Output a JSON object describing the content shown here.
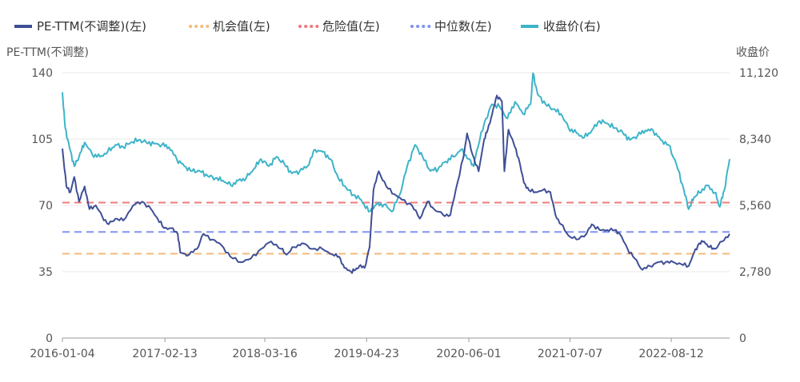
{
  "chart_data": {
    "type": "line",
    "legend": [
      {
        "key": "pe",
        "label": "PE-TTM(不调整)(左)",
        "color": "#3F4F96",
        "style": "solid"
      },
      {
        "key": "opp",
        "label": "机会值(左)",
        "color": "#F6B97A",
        "style": "dotted"
      },
      {
        "key": "danger",
        "label": "危险值(左)",
        "color": "#F07A7A",
        "style": "dotted"
      },
      {
        "key": "median",
        "label": "中位数(左)",
        "color": "#7F93F2",
        "style": "dotted"
      },
      {
        "key": "close",
        "label": "收盘价(右)",
        "color": "#3DB4C8",
        "style": "solid"
      }
    ],
    "y_left": {
      "title": "PE-TTM(不调整)",
      "ticks": [
        0,
        35,
        70,
        105,
        140
      ],
      "tick_labels": [
        "0",
        "35",
        "70",
        "105",
        "140"
      ],
      "range": [
        0,
        140
      ]
    },
    "y_right": {
      "title": "收盘价",
      "ticks": [
        0,
        2780,
        5560,
        8340,
        11120
      ],
      "tick_labels": [
        "0",
        "2,780",
        "5,560",
        "8,340",
        "11,120"
      ],
      "range": [
        0,
        11120
      ]
    },
    "x": {
      "tick_labels": [
        "2016-01-04",
        "2017-02-13",
        "2018-03-16",
        "2019-04-23",
        "2020-06-01",
        "2021-07-07",
        "2022-08-12"
      ],
      "start": "2016-01-04",
      "end": "2023-03-31"
    },
    "reference_lines": {
      "opportunity": 44.5,
      "danger": 71.5,
      "median": 56
    },
    "pe_series": [
      [
        "2016-01-04",
        100
      ],
      [
        "2016-01-20",
        80
      ],
      [
        "2016-02-05",
        77
      ],
      [
        "2016-02-20",
        85
      ],
      [
        "2016-03-10",
        72
      ],
      [
        "2016-04-01",
        80
      ],
      [
        "2016-04-20",
        68
      ],
      [
        "2016-05-15",
        70
      ],
      [
        "2016-06-10",
        64
      ],
      [
        "2016-07-05",
        60
      ],
      [
        "2016-08-01",
        63
      ],
      [
        "2016-09-01",
        62
      ],
      [
        "2016-10-10",
        70
      ],
      [
        "2016-11-15",
        72
      ],
      [
        "2016-12-20",
        68
      ],
      [
        "2017-01-15",
        63
      ],
      [
        "2017-02-10",
        58
      ],
      [
        "2017-03-10",
        58
      ],
      [
        "2017-04-05",
        55
      ],
      [
        "2017-04-15",
        45
      ],
      [
        "2017-05-20",
        44
      ],
      [
        "2017-06-20",
        47
      ],
      [
        "2017-07-15",
        55
      ],
      [
        "2017-08-20",
        52
      ],
      [
        "2017-09-25",
        49
      ],
      [
        "2017-10-30",
        43
      ],
      [
        "2017-12-10",
        40
      ],
      [
        "2018-01-20",
        42
      ],
      [
        "2018-03-01",
        47
      ],
      [
        "2018-04-10",
        51
      ],
      [
        "2018-05-20",
        47
      ],
      [
        "2018-06-10",
        44
      ],
      [
        "2018-07-10",
        48
      ],
      [
        "2018-08-10",
        50
      ],
      [
        "2018-09-20",
        47
      ],
      [
        "2018-10-30",
        47
      ],
      [
        "2018-12-10",
        44
      ],
      [
        "2019-01-04",
        43
      ],
      [
        "2019-01-25",
        37
      ],
      [
        "2019-02-20",
        35
      ],
      [
        "2019-03-10",
        36
      ],
      [
        "2019-03-25",
        38
      ],
      [
        "2019-04-15",
        37
      ],
      [
        "2019-05-05",
        48
      ],
      [
        "2019-05-20",
        78
      ],
      [
        "2019-06-10",
        88
      ],
      [
        "2019-07-10",
        80
      ],
      [
        "2019-08-10",
        76
      ],
      [
        "2019-09-10",
        73
      ],
      [
        "2019-10-20",
        70
      ],
      [
        "2019-11-20",
        63
      ],
      [
        "2019-12-20",
        72
      ],
      [
        "2020-01-15",
        68
      ],
      [
        "2020-02-20",
        65
      ],
      [
        "2020-03-20",
        65
      ],
      [
        "2020-04-10",
        78
      ],
      [
        "2020-05-10",
        95
      ],
      [
        "2020-05-25",
        108
      ],
      [
        "2020-06-15",
        97
      ],
      [
        "2020-07-10",
        88
      ],
      [
        "2020-08-01",
        105
      ],
      [
        "2020-08-15",
        110
      ],
      [
        "2020-09-01",
        118
      ],
      [
        "2020-09-20",
        128
      ],
      [
        "2020-10-10",
        125
      ],
      [
        "2020-10-20",
        88
      ],
      [
        "2020-11-05",
        110
      ],
      [
        "2020-11-25",
        103
      ],
      [
        "2020-12-15",
        95
      ],
      [
        "2021-01-05",
        82
      ],
      [
        "2021-01-25",
        78
      ],
      [
        "2021-02-20",
        77
      ],
      [
        "2021-03-20",
        78
      ],
      [
        "2021-04-20",
        77
      ],
      [
        "2021-05-10",
        65
      ],
      [
        "2021-06-01",
        60
      ],
      [
        "2021-07-01",
        54
      ],
      [
        "2021-08-01",
        52
      ],
      [
        "2021-09-10",
        55
      ],
      [
        "2021-10-01",
        60
      ],
      [
        "2021-11-01",
        57
      ],
      [
        "2021-12-01",
        57
      ],
      [
        "2022-01-01",
        57
      ],
      [
        "2022-01-20",
        55
      ],
      [
        "2022-02-20",
        47
      ],
      [
        "2022-03-20",
        42
      ],
      [
        "2022-04-20",
        36
      ],
      [
        "2022-05-20",
        38
      ],
      [
        "2022-06-20",
        40
      ],
      [
        "2022-07-20",
        40
      ],
      [
        "2022-08-20",
        40
      ],
      [
        "2022-09-20",
        39
      ],
      [
        "2022-10-20",
        38
      ],
      [
        "2022-11-10",
        45
      ],
      [
        "2022-12-01",
        50
      ],
      [
        "2022-12-20",
        51
      ],
      [
        "2023-01-10",
        48
      ],
      [
        "2023-02-01",
        47
      ],
      [
        "2023-03-01",
        51
      ],
      [
        "2023-03-31",
        55
      ]
    ],
    "close_series": [
      [
        "2016-01-04",
        10300
      ],
      [
        "2016-01-15",
        8800
      ],
      [
        "2016-02-01",
        8000
      ],
      [
        "2016-02-20",
        7200
      ],
      [
        "2016-03-10",
        7600
      ],
      [
        "2016-04-01",
        8200
      ],
      [
        "2016-05-01",
        7700
      ],
      [
        "2016-06-01",
        7600
      ],
      [
        "2016-07-01",
        7800
      ],
      [
        "2016-08-01",
        8100
      ],
      [
        "2016-09-01",
        8000
      ],
      [
        "2016-10-01",
        8200
      ],
      [
        "2016-11-01",
        8300
      ],
      [
        "2016-12-01",
        8200
      ],
      [
        "2017-01-01",
        8150
      ],
      [
        "2017-02-01",
        8100
      ],
      [
        "2017-03-01",
        8000
      ],
      [
        "2017-04-01",
        7500
      ],
      [
        "2017-05-01",
        7200
      ],
      [
        "2017-06-01",
        7000
      ],
      [
        "2017-07-01",
        7000
      ],
      [
        "2017-08-01",
        6800
      ],
      [
        "2017-09-01",
        6700
      ],
      [
        "2017-10-01",
        6600
      ],
      [
        "2017-11-01",
        6400
      ],
      [
        "2017-12-01",
        6600
      ],
      [
        "2018-01-01",
        6700
      ],
      [
        "2018-02-01",
        7100
      ],
      [
        "2018-03-01",
        7500
      ],
      [
        "2018-04-01",
        7200
      ],
      [
        "2018-05-01",
        7600
      ],
      [
        "2018-06-01",
        7300
      ],
      [
        "2018-07-01",
        6900
      ],
      [
        "2018-08-01",
        7000
      ],
      [
        "2018-09-01",
        7200
      ],
      [
        "2018-10-01",
        7900
      ],
      [
        "2018-11-01",
        7800
      ],
      [
        "2018-12-01",
        7500
      ],
      [
        "2019-01-01",
        6700
      ],
      [
        "2019-02-01",
        6300
      ],
      [
        "2019-03-01",
        6000
      ],
      [
        "2019-04-01",
        5800
      ],
      [
        "2019-05-01",
        5300
      ],
      [
        "2019-06-01",
        5600
      ],
      [
        "2019-07-01",
        5600
      ],
      [
        "2019-08-01",
        5300
      ],
      [
        "2019-09-01",
        6000
      ],
      [
        "2019-10-01",
        7200
      ],
      [
        "2019-11-01",
        8100
      ],
      [
        "2019-12-01",
        7600
      ],
      [
        "2020-01-01",
        7000
      ],
      [
        "2020-02-01",
        7100
      ],
      [
        "2020-03-01",
        7400
      ],
      [
        "2020-04-01",
        7600
      ],
      [
        "2020-05-01",
        7900
      ],
      [
        "2020-06-01",
        7500
      ],
      [
        "2020-06-20",
        7200
      ],
      [
        "2020-07-01",
        7800
      ],
      [
        "2020-08-01",
        9000
      ],
      [
        "2020-09-01",
        9800
      ],
      [
        "2020-10-01",
        9700
      ],
      [
        "2020-11-01",
        9200
      ],
      [
        "2020-12-01",
        9900
      ],
      [
        "2021-01-01",
        9400
      ],
      [
        "2021-02-01",
        9800
      ],
      [
        "2021-02-10",
        11100
      ],
      [
        "2021-03-01",
        10200
      ],
      [
        "2021-04-01",
        9800
      ],
      [
        "2021-05-01",
        9600
      ],
      [
        "2021-06-01",
        9400
      ],
      [
        "2021-07-01",
        8800
      ],
      [
        "2021-08-01",
        8600
      ],
      [
        "2021-09-01",
        8400
      ],
      [
        "2021-10-01",
        8700
      ],
      [
        "2021-11-01",
        9100
      ],
      [
        "2021-12-01",
        9000
      ],
      [
        "2022-01-01",
        8800
      ],
      [
        "2022-02-01",
        8600
      ],
      [
        "2022-03-01",
        8300
      ],
      [
        "2022-04-01",
        8500
      ],
      [
        "2022-05-01",
        8700
      ],
      [
        "2022-06-01",
        8700
      ],
      [
        "2022-07-01",
        8300
      ],
      [
        "2022-08-01",
        8100
      ],
      [
        "2022-09-01",
        7300
      ],
      [
        "2022-10-01",
        6200
      ],
      [
        "2022-10-20",
        5400
      ],
      [
        "2022-11-10",
        5900
      ],
      [
        "2022-12-01",
        6100
      ],
      [
        "2023-01-01",
        6400
      ],
      [
        "2023-02-01",
        6100
      ],
      [
        "2023-02-20",
        5500
      ],
      [
        "2023-03-10",
        6200
      ],
      [
        "2023-03-31",
        7500
      ]
    ]
  }
}
